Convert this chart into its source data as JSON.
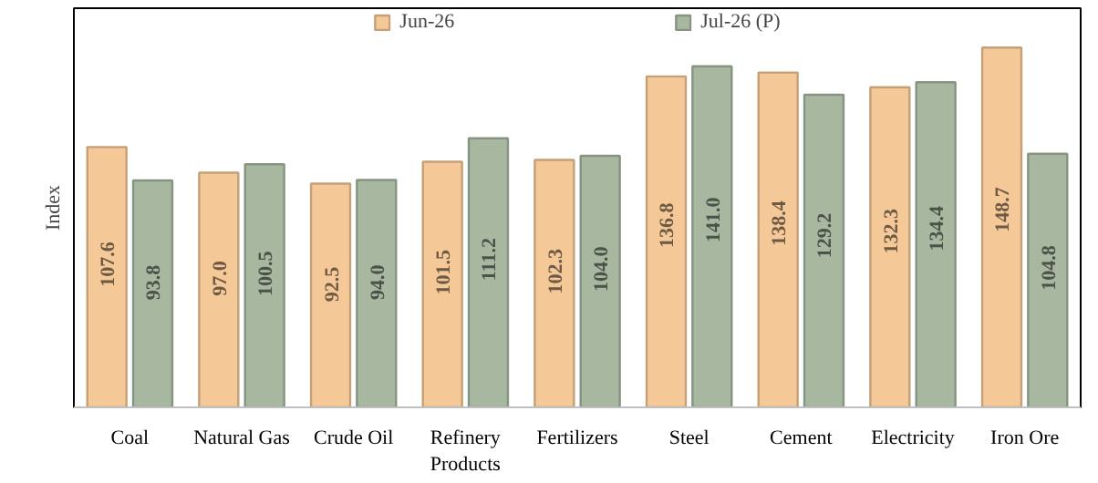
{
  "chart_data": {
    "type": "bar",
    "ylabel": "Index",
    "categories": [
      "Coal",
      "Natural Gas",
      "Crude Oil",
      "Refinery Products",
      "Fertilizers",
      "Steel",
      "Cement",
      "Electricity",
      "Iron Ore"
    ],
    "series": [
      {
        "name": "Jun-26",
        "color": "#f5c898",
        "values": [
          107.6,
          97.0,
          92.5,
          101.5,
          102.3,
          136.8,
          138.4,
          132.3,
          148.7
        ],
        "value_labels": [
          "107.6",
          "97.0",
          "92.5",
          "101.5",
          "102.3",
          "136.8",
          "138.4",
          "132.3",
          "148.7"
        ]
      },
      {
        "name": "Jul-26 (P)",
        "color": "#a8b8a0",
        "values": [
          93.8,
          100.5,
          94.0,
          111.2,
          104.0,
          141.0,
          129.2,
          134.4,
          104.8
        ],
        "value_labels": [
          "93.8",
          "100.5",
          "94.0",
          "111.2",
          "104.0",
          "141.0",
          "129.2",
          "134.4",
          "104.8"
        ]
      }
    ],
    "ylim": [
      0,
      165
    ],
    "tick_labels": "x",
    "legend": "top",
    "grid": false
  }
}
